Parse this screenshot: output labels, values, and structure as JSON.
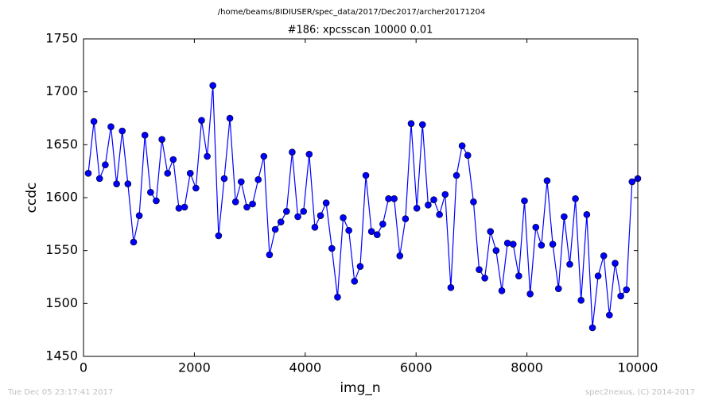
{
  "chart_data": {
    "type": "line",
    "suptitle": "/home/beams/8IDIUSER/spec_data/2017/Dec2017/archer20171204",
    "title": "#186: xpcsscan 10000 0.01",
    "xlabel": "img_n",
    "ylabel": "ccdc",
    "footer_left": "Tue Dec 05 23:17:41 2017",
    "footer_right": "spec2nexus, (C) 2014-2017",
    "xlim": [
      0,
      10000
    ],
    "xticks": [
      0,
      2000,
      4000,
      6000,
      8000,
      10000
    ],
    "ylim": [
      1450,
      1750
    ],
    "yticks": [
      1450,
      1500,
      1550,
      1600,
      1650,
      1700,
      1750
    ],
    "x": [
      86,
      188,
      290,
      393,
      495,
      597,
      699,
      801,
      904,
      1006,
      1108,
      1210,
      1312,
      1415,
      1517,
      1619,
      1721,
      1823,
      1926,
      2028,
      2130,
      2232,
      2334,
      2437,
      2539,
      2641,
      2743,
      2845,
      2948,
      3050,
      3152,
      3254,
      3356,
      3459,
      3561,
      3663,
      3765,
      3867,
      3970,
      4072,
      4174,
      4276,
      4378,
      4481,
      4583,
      4685,
      4787,
      4889,
      4992,
      5094,
      5196,
      5298,
      5400,
      5503,
      5605,
      5707,
      5809,
      5911,
      6014,
      6116,
      6218,
      6320,
      6422,
      6525,
      6627,
      6729,
      6831,
      6933,
      7036,
      7138,
      7240,
      7342,
      7444,
      7547,
      7649,
      7751,
      7853,
      7955,
      8058,
      8160,
      8262,
      8364,
      8466,
      8569,
      8671,
      8773,
      8875,
      8977,
      9080,
      9182,
      9284,
      9386,
      9488,
      9591,
      9693,
      9795,
      9897,
      10000
    ],
    "series": [
      {
        "name": "ccdc",
        "color": "#0000ff",
        "values": [
          1623,
          1672,
          1618,
          1631,
          1667,
          1613,
          1663,
          1613,
          1558,
          1583,
          1659,
          1605,
          1597,
          1655,
          1623,
          1636,
          1590,
          1591,
          1623,
          1609,
          1673,
          1639,
          1706,
          1564,
          1618,
          1675,
          1596,
          1615,
          1591,
          1594,
          1617,
          1639,
          1546,
          1570,
          1577,
          1587,
          1643,
          1582,
          1587,
          1641,
          1572,
          1583,
          1595,
          1552,
          1506,
          1581,
          1569,
          1521,
          1535,
          1621,
          1568,
          1565,
          1575,
          1599,
          1599,
          1545,
          1580,
          1670,
          1590,
          1669,
          1593,
          1598,
          1584,
          1603,
          1515,
          1621,
          1649,
          1640,
          1596,
          1532,
          1524,
          1568,
          1550,
          1512,
          1557,
          1556,
          1526,
          1597,
          1509,
          1572,
          1555,
          1616,
          1556,
          1514,
          1582,
          1537,
          1599,
          1503,
          1584,
          1477,
          1526,
          1545,
          1489,
          1538,
          1507,
          1513,
          1615,
          1618
        ]
      }
    ]
  }
}
